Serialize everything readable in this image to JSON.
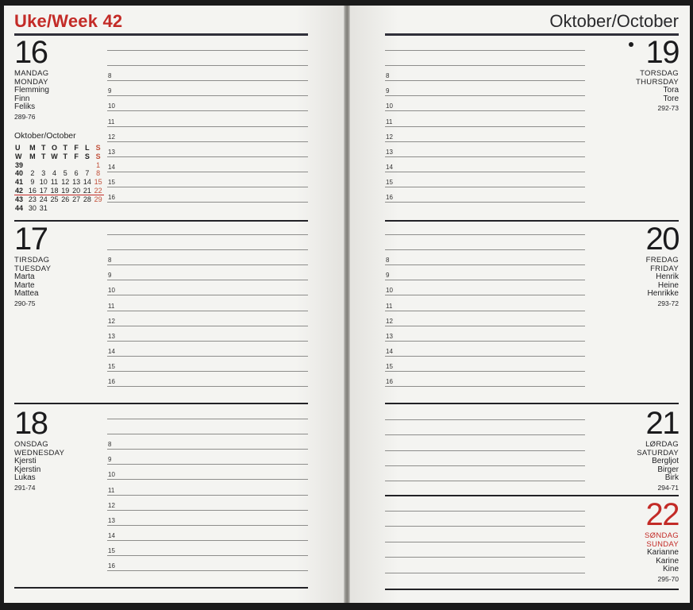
{
  "left_page": {
    "title": "Uke/Week 42"
  },
  "right_page": {
    "title": "Oktober/October"
  },
  "mini_calendar": {
    "title": "Oktober/October",
    "header_row_1": [
      "U",
      "M",
      "T",
      "O",
      "T",
      "F",
      "L",
      "S"
    ],
    "header_row_2": [
      "W",
      "M",
      "T",
      "W",
      "T",
      "F",
      "S",
      "S"
    ],
    "weeks": [
      {
        "week": "39",
        "days": [
          "",
          "",
          "",
          "",
          "",
          "",
          "1"
        ],
        "current": false
      },
      {
        "week": "40",
        "days": [
          "2",
          "3",
          "4",
          "5",
          "6",
          "7",
          "8"
        ],
        "current": false
      },
      {
        "week": "41",
        "days": [
          "9",
          "10",
          "11",
          "12",
          "13",
          "14",
          "15"
        ],
        "current": false
      },
      {
        "week": "42",
        "days": [
          "16",
          "17",
          "18",
          "19",
          "20",
          "21",
          "22"
        ],
        "current": true
      },
      {
        "week": "43",
        "days": [
          "23",
          "24",
          "25",
          "26",
          "27",
          "28",
          "29"
        ],
        "current": false
      },
      {
        "week": "44",
        "days": [
          "30",
          "31",
          "",
          "",
          "",
          "",
          ""
        ],
        "current": false
      }
    ]
  },
  "schedule": {
    "hour_labels": [
      "8",
      "9",
      "10",
      "11",
      "12",
      "13",
      "14",
      "15",
      "16"
    ]
  },
  "days": [
    {
      "number": "16",
      "name_no": "MANDAG",
      "name_en": "MONDAY",
      "names": [
        "Flemming",
        "Finn",
        "Feliks"
      ],
      "code": "289-76",
      "sunday": false,
      "moon_marker": false
    },
    {
      "number": "17",
      "name_no": "TIRSDAG",
      "name_en": "TUESDAY",
      "names": [
        "Marta",
        "Marte",
        "Mattea"
      ],
      "code": "290-75",
      "sunday": false,
      "moon_marker": false
    },
    {
      "number": "18",
      "name_no": "ONSDAG",
      "name_en": "WEDNESDAY",
      "names": [
        "Kjersti",
        "Kjerstin",
        "Lukas"
      ],
      "code": "291-74",
      "sunday": false,
      "moon_marker": false
    },
    {
      "number": "19",
      "name_no": "TORSDAG",
      "name_en": "THURSDAY",
      "names": [
        "Tora",
        "Tore"
      ],
      "code": "292-73",
      "sunday": false,
      "moon_marker": true
    },
    {
      "number": "20",
      "name_no": "FREDAG",
      "name_en": "FRIDAY",
      "names": [
        "Henrik",
        "Heine",
        "Henrikke"
      ],
      "code": "293-72",
      "sunday": false,
      "moon_marker": false
    },
    {
      "number": "21",
      "name_no": "LØRDAG",
      "name_en": "SATURDAY",
      "names": [
        "Bergljot",
        "Birger",
        "Birk"
      ],
      "code": "294-71",
      "sunday": false,
      "moon_marker": false
    },
    {
      "number": "22",
      "name_no": "SØNDAG",
      "name_en": "SUNDAY",
      "names": [
        "Karianne",
        "Karine",
        "Kine"
      ],
      "code": "295-70",
      "sunday": true,
      "moon_marker": false
    }
  ],
  "colors": {
    "accent_red": "#c32b27",
    "mini_calendar_sunday_red": "#c2503a",
    "ink": "#1d1d1f",
    "ruled_line": "#8d8d8b"
  }
}
